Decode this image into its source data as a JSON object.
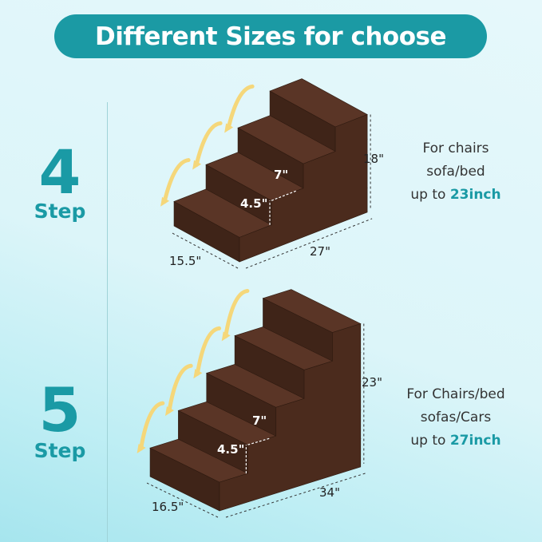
{
  "header": {
    "title": "Different Sizes for choose"
  },
  "colors": {
    "accent": "#1a9aa5",
    "stair_tread": "#5a3526",
    "stair_riser": "#3f2418",
    "stair_side": "#4b2b1d",
    "arrow": "#f5d77a"
  },
  "products": [
    {
      "steps_number": "4",
      "steps_label": "Step",
      "height": "18\"",
      "depth": "15.5\"",
      "length": "27\"",
      "tread": "7\"",
      "riser": "4.5\"",
      "desc_line1": "For chairs",
      "desc_line2": "sofa/bed",
      "desc_prefix": "up to ",
      "desc_highlight": "23inch"
    },
    {
      "steps_number": "5",
      "steps_label": "Step",
      "height": "23\"",
      "depth": "16.5\"",
      "length": "34\"",
      "tread": "7\"",
      "riser": "4.5\"",
      "desc_line1": "For Chairs/bed",
      "desc_line2": "sofas/Cars",
      "desc_prefix": "up to ",
      "desc_highlight": "27inch"
    }
  ]
}
